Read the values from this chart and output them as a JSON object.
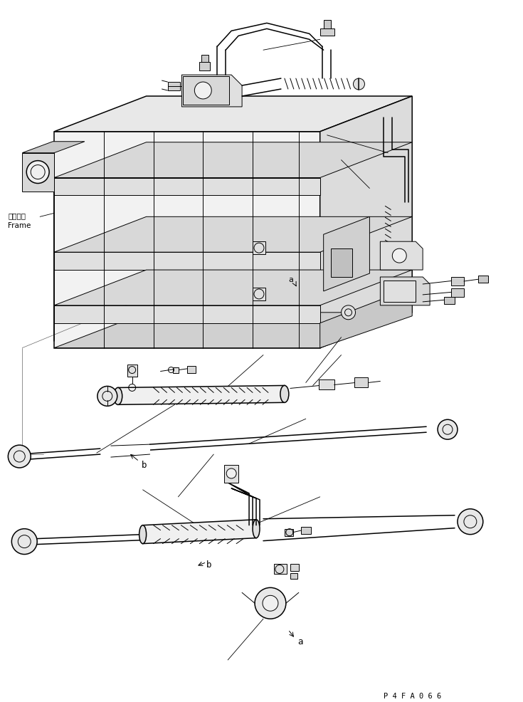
{
  "bg_color": "#ffffff",
  "line_color": "#000000",
  "lw": 0.7,
  "lw2": 1.1,
  "figsize": [
    7.35,
    9.87
  ],
  "dpi": 100,
  "label_frame_ja": "フレーム",
  "label_frame_en": "Frame",
  "label_p4fa066": "P 4 F A 0 6 6"
}
